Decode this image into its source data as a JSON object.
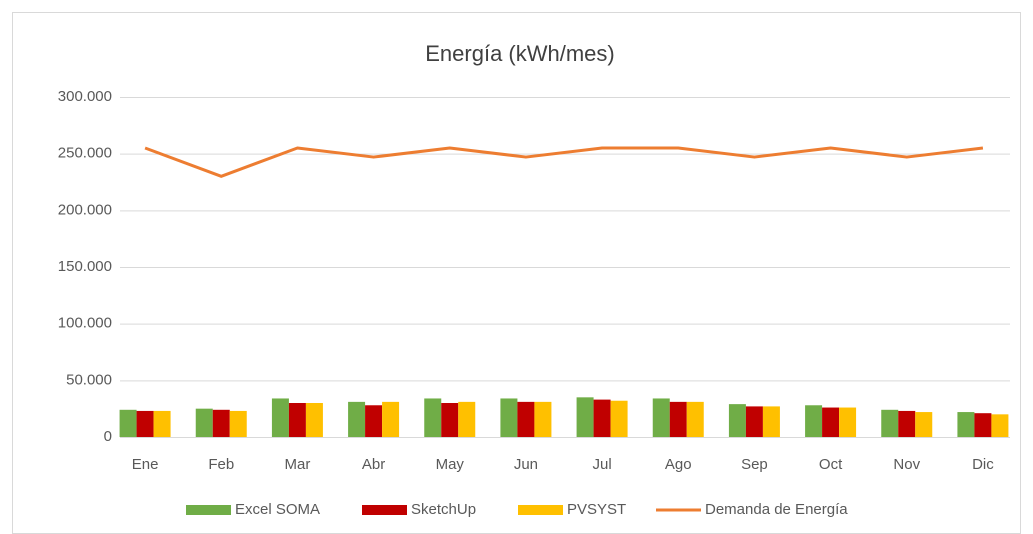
{
  "chart_data": {
    "type": "bar",
    "title": "Energía (kWh/mes)",
    "categories": [
      "Ene",
      "Feb",
      "Mar",
      "Abr",
      "May",
      "Jun",
      "Jul",
      "Ago",
      "Sep",
      "Oct",
      "Nov",
      "Dic"
    ],
    "series": [
      {
        "name": "Excel SOMA",
        "color": "#70ad47",
        "values": [
          24000,
          25000,
          34000,
          31000,
          34000,
          34000,
          35000,
          34000,
          29000,
          28000,
          24000,
          22000
        ]
      },
      {
        "name": "SketchUp",
        "color": "#c00000",
        "values": [
          23000,
          24000,
          30000,
          28000,
          30000,
          31000,
          33000,
          31000,
          27000,
          26000,
          23000,
          21000
        ]
      },
      {
        "name": "PVSYST",
        "color": "#ffc000",
        "values": [
          23000,
          23000,
          30000,
          31000,
          31000,
          31000,
          32000,
          31000,
          27000,
          26000,
          22000,
          20000
        ]
      },
      {
        "name": "Demanda de Energía",
        "color": "#ed7d31",
        "kind": "line",
        "values": [
          255000,
          230000,
          255000,
          247000,
          255000,
          247000,
          255000,
          255000,
          247000,
          255000,
          247000,
          255000
        ]
      }
    ],
    "ylim": [
      0,
      300000
    ],
    "yticks": [
      0,
      {
        "value": 50000,
        "label": "50.000"
      },
      {
        "value": 100000,
        "label": "100.000"
      },
      {
        "value": 150000,
        "label": "150.000"
      },
      {
        "value": 200000,
        "label": "200.000"
      },
      {
        "value": 250000,
        "label": "250.000"
      },
      {
        "value": 300000,
        "label": "300.000"
      }
    ],
    "grid": true,
    "legend": "bottom"
  }
}
